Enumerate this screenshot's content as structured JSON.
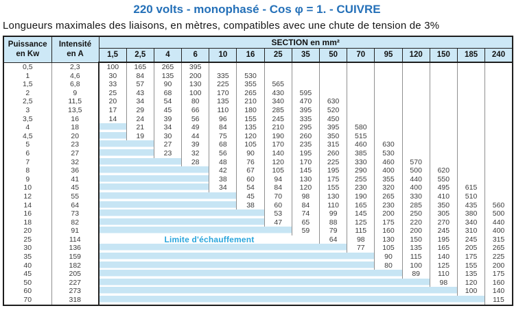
{
  "title": "220 volts - monophasé - Cos φ = 1. - CUIVRE",
  "subtitle": "Longueurs maximales des liaisons, en mètres, compatibles avec une chute de tension de 3%",
  "colors": {
    "title_blue": "#2470b8",
    "header_bg": "#cde8f6",
    "stripe_blue": "#c7e5f4",
    "limit_text": "#29a5dc",
    "border_dark": "#1c1c1c",
    "grid_line": "#8f8f8f",
    "num_text": "#3a3a3a"
  },
  "table": {
    "col1": {
      "line1": "Puissance",
      "line2": "en Kw"
    },
    "col2": {
      "line1": "Intensité",
      "line2": "en A"
    },
    "section_header": "SECTION en mm²",
    "sections": [
      "1,5",
      "2,5",
      "4",
      "6",
      "10",
      "16",
      "25",
      "35",
      "50",
      "70",
      "95",
      "120",
      "150",
      "185",
      "240"
    ],
    "limit_label": "Limite d'échauffement",
    "rows": [
      {
        "kw": "0,5",
        "a": "2,3",
        "values": [
          "100",
          "165",
          "265",
          "395",
          "",
          "",
          "",
          "",
          "",
          "",
          "",
          "",
          "",
          "",
          ""
        ]
      },
      {
        "kw": "1",
        "a": "4,6",
        "values": [
          "30",
          "84",
          "135",
          "200",
          "335",
          "530",
          "",
          "",
          "",
          "",
          "",
          "",
          "",
          "",
          ""
        ]
      },
      {
        "kw": "1,5",
        "a": "6,8",
        "values": [
          "33",
          "57",
          "90",
          "130",
          "225",
          "355",
          "565",
          "",
          "",
          "",
          "",
          "",
          "",
          "",
          ""
        ]
      },
      {
        "kw": "2",
        "a": "9",
        "values": [
          "25",
          "43",
          "68",
          "100",
          "170",
          "265",
          "430",
          "595",
          "",
          "",
          "",
          "",
          "",
          "",
          ""
        ]
      },
      {
        "kw": "2,5",
        "a": "11,5",
        "values": [
          "20",
          "34",
          "54",
          "80",
          "135",
          "210",
          "340",
          "470",
          "630",
          "",
          "",
          "",
          "",
          "",
          ""
        ]
      },
      {
        "kw": "3",
        "a": "13,5",
        "values": [
          "17",
          "29",
          "45",
          "66",
          "110",
          "180",
          "285",
          "395",
          "520",
          "",
          "",
          "",
          "",
          "",
          ""
        ]
      },
      {
        "kw": "3,5",
        "a": "16",
        "values": [
          "14",
          "24",
          "39",
          "56",
          "96",
          "155",
          "245",
          "335",
          "450",
          "",
          "",
          "",
          "",
          "",
          ""
        ]
      },
      {
        "kw": "4",
        "a": "18",
        "values": [
          "L",
          "21",
          "34",
          "49",
          "84",
          "135",
          "210",
          "295",
          "395",
          "580",
          "",
          "",
          "",
          "",
          ""
        ]
      },
      {
        "kw": "4,5",
        "a": "20",
        "values": [
          "L",
          "19",
          "30",
          "44",
          "75",
          "120",
          "190",
          "260",
          "350",
          "515",
          "",
          "",
          "",
          "",
          ""
        ]
      },
      {
        "kw": "5",
        "a": "23",
        "values": [
          "L",
          "L",
          "27",
          "39",
          "68",
          "105",
          "170",
          "235",
          "315",
          "460",
          "630",
          "",
          "",
          "",
          ""
        ]
      },
      {
        "kw": "6",
        "a": "27",
        "values": [
          "L",
          "L",
          "23",
          "32",
          "56",
          "90",
          "140",
          "195",
          "260",
          "385",
          "530",
          "",
          "",
          "",
          ""
        ]
      },
      {
        "kw": "7",
        "a": "32",
        "values": [
          "L",
          "L",
          "L",
          "28",
          "48",
          "76",
          "120",
          "170",
          "225",
          "330",
          "460",
          "570",
          "",
          "",
          ""
        ]
      },
      {
        "kw": "8",
        "a": "36",
        "values": [
          "L",
          "L",
          "L",
          "L",
          "42",
          "67",
          "105",
          "145",
          "195",
          "290",
          "400",
          "500",
          "620",
          "",
          ""
        ]
      },
      {
        "kw": "9",
        "a": "41",
        "values": [
          "L",
          "L",
          "L",
          "L",
          "38",
          "60",
          "94",
          "130",
          "175",
          "255",
          "355",
          "440",
          "550",
          "",
          ""
        ]
      },
      {
        "kw": "10",
        "a": "45",
        "values": [
          "L",
          "L",
          "L",
          "L",
          "34",
          "54",
          "84",
          "120",
          "155",
          "230",
          "320",
          "400",
          "495",
          "615",
          ""
        ]
      },
      {
        "kw": "12",
        "a": "55",
        "values": [
          "L",
          "L",
          "L",
          "L",
          "L",
          "45",
          "70",
          "98",
          "130",
          "190",
          "265",
          "330",
          "410",
          "510",
          ""
        ]
      },
      {
        "kw": "14",
        "a": "64",
        "values": [
          "L",
          "L",
          "L",
          "L",
          "L",
          "38",
          "60",
          "84",
          "110",
          "165",
          "230",
          "285",
          "350",
          "435",
          "560"
        ]
      },
      {
        "kw": "16",
        "a": "73",
        "values": [
          "L",
          "L",
          "L",
          "L",
          "L",
          "L",
          "53",
          "74",
          "99",
          "145",
          "200",
          "250",
          "305",
          "380",
          "500"
        ]
      },
      {
        "kw": "18",
        "a": "82",
        "values": [
          "L",
          "L",
          "L",
          "L",
          "L",
          "L",
          "47",
          "65",
          "88",
          "125",
          "175",
          "220",
          "270",
          "340",
          "440"
        ]
      },
      {
        "kw": "20",
        "a": "91",
        "values": [
          "L",
          "L",
          "L",
          "L",
          "L",
          "L",
          "L",
          "59",
          "79",
          "115",
          "160",
          "200",
          "245",
          "310",
          "400"
        ]
      },
      {
        "kw": "25",
        "a": "114",
        "label_row": true,
        "values": [
          "L",
          "L",
          "L",
          "L",
          "L",
          "L",
          "L",
          "L",
          "64",
          "98",
          "130",
          "150",
          "195",
          "245",
          "315"
        ]
      },
      {
        "kw": "30",
        "a": "136",
        "values": [
          "L",
          "L",
          "L",
          "L",
          "L",
          "L",
          "L",
          "L",
          "L",
          "77",
          "105",
          "135",
          "165",
          "205",
          "265"
        ]
      },
      {
        "kw": "35",
        "a": "159",
        "values": [
          "L",
          "L",
          "L",
          "L",
          "L",
          "L",
          "L",
          "L",
          "L",
          "L",
          "90",
          "115",
          "140",
          "175",
          "225"
        ]
      },
      {
        "kw": "40",
        "a": "182",
        "values": [
          "L",
          "L",
          "L",
          "L",
          "L",
          "L",
          "L",
          "L",
          "L",
          "L",
          "80",
          "100",
          "125",
          "155",
          "200"
        ]
      },
      {
        "kw": "45",
        "a": "205",
        "values": [
          "L",
          "L",
          "L",
          "L",
          "L",
          "L",
          "L",
          "L",
          "L",
          "L",
          "L",
          "89",
          "110",
          "135",
          "175"
        ]
      },
      {
        "kw": "50",
        "a": "227",
        "values": [
          "L",
          "L",
          "L",
          "L",
          "L",
          "L",
          "L",
          "L",
          "L",
          "L",
          "L",
          "L",
          "98",
          "120",
          "160"
        ]
      },
      {
        "kw": "60",
        "a": "273",
        "values": [
          "L",
          "L",
          "L",
          "L",
          "L",
          "L",
          "L",
          "L",
          "L",
          "L",
          "L",
          "L",
          "L",
          "100",
          "140"
        ]
      },
      {
        "kw": "70",
        "a": "318",
        "values": [
          "L",
          "L",
          "L",
          "L",
          "L",
          "L",
          "L",
          "L",
          "L",
          "L",
          "L",
          "L",
          "L",
          "L",
          "115"
        ]
      }
    ]
  }
}
